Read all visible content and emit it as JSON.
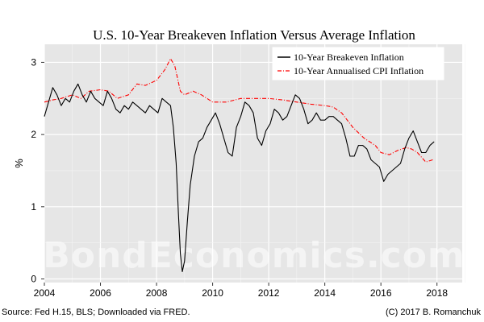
{
  "chart_data": {
    "type": "line",
    "title": "U.S. 10-Year Breakeven Inflation Versus Average Inflation",
    "ylabel": "%",
    "xlabel": "",
    "xlim": [
      2004,
      2018.9
    ],
    "ylim": [
      -0.05,
      3.25
    ],
    "x_ticks": [
      2004,
      2006,
      2008,
      2010,
      2012,
      2014,
      2016,
      2018
    ],
    "y_ticks": [
      0,
      1,
      2,
      3
    ],
    "grid": true,
    "legend_position": "top-right",
    "series": [
      {
        "name": "10-Year Breakeven Inflation",
        "color": "#000000",
        "style": "solid",
        "x": [
          2004.0,
          2004.15,
          2004.3,
          2004.45,
          2004.6,
          2004.75,
          2004.9,
          2005.05,
          2005.2,
          2005.35,
          2005.5,
          2005.65,
          2005.8,
          2005.95,
          2006.1,
          2006.25,
          2006.4,
          2006.55,
          2006.7,
          2006.85,
          2007.0,
          2007.15,
          2007.3,
          2007.45,
          2007.6,
          2007.75,
          2007.9,
          2008.05,
          2008.2,
          2008.35,
          2008.5,
          2008.6,
          2008.7,
          2008.78,
          2008.85,
          2008.92,
          2009.0,
          2009.1,
          2009.2,
          2009.35,
          2009.5,
          2009.65,
          2009.8,
          2009.95,
          2010.1,
          2010.25,
          2010.4,
          2010.55,
          2010.7,
          2010.85,
          2011.0,
          2011.15,
          2011.3,
          2011.45,
          2011.6,
          2011.75,
          2011.9,
          2012.05,
          2012.2,
          2012.35,
          2012.5,
          2012.65,
          2012.8,
          2012.95,
          2013.1,
          2013.25,
          2013.4,
          2013.55,
          2013.7,
          2013.85,
          2014.0,
          2014.15,
          2014.3,
          2014.45,
          2014.6,
          2014.75,
          2014.9,
          2015.05,
          2015.2,
          2015.35,
          2015.5,
          2015.65,
          2015.8,
          2015.95,
          2016.1,
          2016.25,
          2016.4,
          2016.55,
          2016.7,
          2016.85,
          2017.0,
          2017.15,
          2017.3,
          2017.45,
          2017.6,
          2017.75,
          2017.9
        ],
        "values": [
          2.25,
          2.45,
          2.65,
          2.55,
          2.4,
          2.5,
          2.45,
          2.6,
          2.7,
          2.55,
          2.45,
          2.6,
          2.5,
          2.45,
          2.4,
          2.6,
          2.5,
          2.35,
          2.3,
          2.4,
          2.35,
          2.45,
          2.4,
          2.35,
          2.3,
          2.4,
          2.35,
          2.3,
          2.5,
          2.45,
          2.4,
          2.1,
          1.6,
          0.9,
          0.35,
          0.1,
          0.25,
          0.8,
          1.3,
          1.7,
          1.9,
          1.95,
          2.1,
          2.2,
          2.3,
          2.15,
          1.95,
          1.75,
          1.7,
          2.1,
          2.25,
          2.45,
          2.4,
          2.3,
          1.95,
          1.85,
          2.05,
          2.15,
          2.35,
          2.3,
          2.2,
          2.25,
          2.4,
          2.55,
          2.5,
          2.35,
          2.15,
          2.2,
          2.3,
          2.2,
          2.2,
          2.25,
          2.25,
          2.2,
          2.15,
          1.95,
          1.7,
          1.7,
          1.85,
          1.85,
          1.8,
          1.65,
          1.6,
          1.55,
          1.35,
          1.45,
          1.5,
          1.55,
          1.6,
          1.8,
          1.95,
          2.05,
          1.9,
          1.75,
          1.75,
          1.85,
          1.9
        ]
      },
      {
        "name": "10-Year Annualised CPI Inflation",
        "color": "#ff0000",
        "style": "dashdot",
        "x": [
          2004.0,
          2004.3,
          2004.6,
          2005.0,
          2005.3,
          2005.6,
          2006.0,
          2006.3,
          2006.6,
          2007.0,
          2007.3,
          2007.6,
          2008.0,
          2008.3,
          2008.5,
          2008.65,
          2008.85,
          2009.0,
          2009.3,
          2009.6,
          2010.0,
          2010.5,
          2011.0,
          2011.5,
          2012.0,
          2012.5,
          2013.0,
          2013.5,
          2014.0,
          2014.3,
          2014.6,
          2015.0,
          2015.4,
          2015.8,
          2016.0,
          2016.3,
          2016.6,
          2016.9,
          2017.1,
          2017.3,
          2017.6,
          2017.85
        ],
        "values": [
          2.45,
          2.48,
          2.5,
          2.55,
          2.5,
          2.6,
          2.62,
          2.6,
          2.5,
          2.55,
          2.7,
          2.68,
          2.75,
          2.9,
          3.05,
          2.95,
          2.6,
          2.55,
          2.6,
          2.55,
          2.45,
          2.45,
          2.5,
          2.5,
          2.5,
          2.48,
          2.45,
          2.42,
          2.4,
          2.38,
          2.3,
          2.1,
          1.95,
          1.85,
          1.75,
          1.72,
          1.78,
          1.82,
          1.8,
          1.75,
          1.62,
          1.65
        ]
      }
    ]
  },
  "footer": {
    "source": "Source: Fed H.15, BLS; Downloaded via FRED.",
    "copyright": "(C) 2017 B. Romanchuk"
  },
  "watermark": "BondEconomics.com"
}
